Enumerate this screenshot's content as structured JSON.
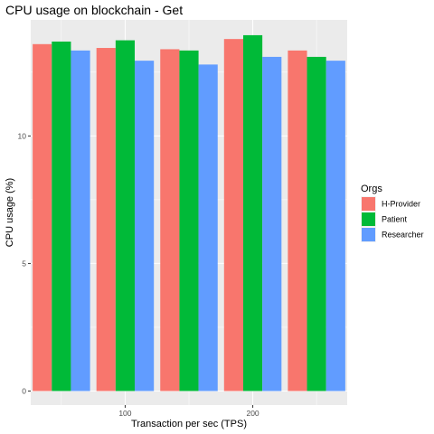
{
  "chart_data": {
    "type": "bar",
    "title": "CPU usage on blockchain - Get",
    "xlabel": "Transaction per sec (TPS)",
    "ylabel": "CPU usage (%)",
    "x": [
      50,
      100,
      150,
      200,
      250
    ],
    "x_ticks": [
      100,
      200
    ],
    "xlim": [
      26,
      274
    ],
    "ylim": [
      -0.55,
      14.55
    ],
    "y_ticks": [
      0,
      5,
      10
    ],
    "grid": true,
    "legend_title": "Orgs",
    "legend_position": "right",
    "series": [
      {
        "name": "H-Provider",
        "color": "#F8766D",
        "values": [
          13.6,
          13.45,
          13.4,
          13.8,
          13.35
        ]
      },
      {
        "name": "Patient",
        "color": "#00BA38",
        "values": [
          13.7,
          13.75,
          13.35,
          13.95,
          13.1
        ]
      },
      {
        "name": "Researcher",
        "color": "#619CFF",
        "values": [
          13.35,
          12.95,
          12.8,
          13.1,
          12.95
        ]
      }
    ]
  }
}
